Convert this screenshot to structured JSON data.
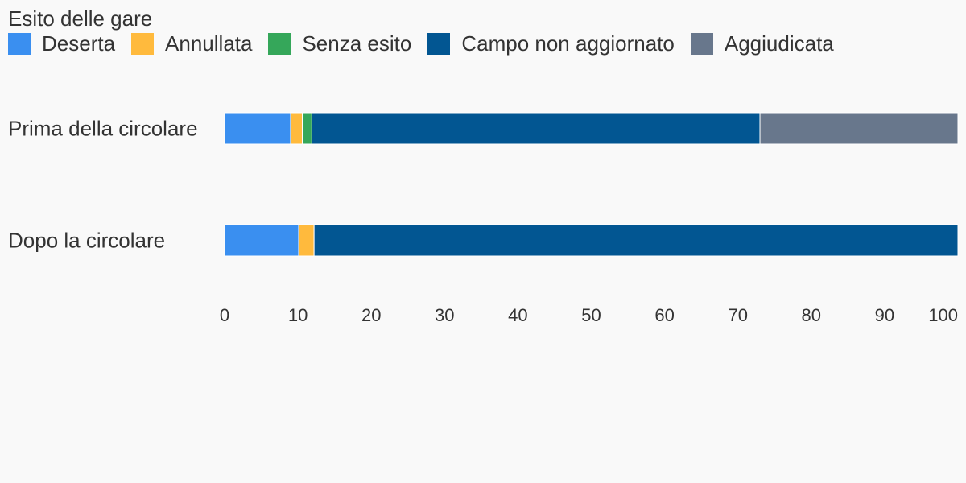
{
  "chart_data": {
    "type": "bar",
    "orientation": "horizontal",
    "stacked": true,
    "legend_title": "Esito delle gare",
    "legend_position": "top-left",
    "categories": [
      "Prima della circolare",
      "Dopo la circolare"
    ],
    "series": [
      {
        "name": "Deserta",
        "color": "#3a8ff0",
        "values": [
          9,
          10.1
        ]
      },
      {
        "name": "Annullata",
        "color": "#ffba3d",
        "values": [
          1.6,
          2.1
        ]
      },
      {
        "name": "Senza esito",
        "color": "#35a75a",
        "values": [
          1.3,
          0
        ]
      },
      {
        "name": "Campo non aggiornato",
        "color": "#025692",
        "values": [
          61.1,
          87.8
        ]
      },
      {
        "name": "Aggiudicata",
        "color": "#68778c",
        "values": [
          27,
          0
        ]
      }
    ],
    "xlim": [
      0,
      100
    ],
    "xticks": [
      "0",
      "10",
      "20",
      "30",
      "40",
      "50",
      "60",
      "70",
      "80",
      "90",
      "100"
    ],
    "grid": false
  }
}
